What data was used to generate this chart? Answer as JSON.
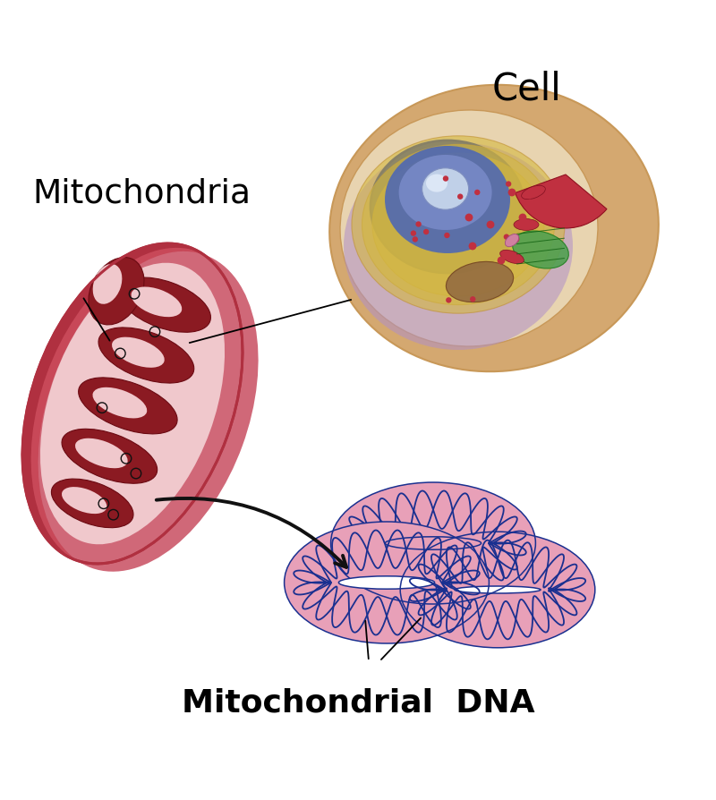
{
  "bg_color": "#ffffff",
  "title_cell": "Cell",
  "title_mito": "Mitochondria",
  "title_dna": "Mitochondrial  DNA",
  "colors": {
    "mito_outer_dark": "#b03040",
    "mito_outer_mid": "#c84858",
    "mito_outer_light": "#d06878",
    "mito_inner_bg": "#f0c8cc",
    "mito_crista": "#8b1a22",
    "mito_crista_edge": "#6b0a12",
    "cell_outer": "#d4a870",
    "cell_outer2": "#c89858",
    "cell_inner": "#e8d4b0",
    "cell_purple": "#b090c8",
    "nucleus_dark": "#2840a0",
    "nucleus_mid": "#4060c0",
    "nucleus_light": "#8090d0",
    "nucleolus": "#c0d0e8",
    "er_yellow": "#d4b840",
    "er_orange": "#c09030",
    "green_org": "#50a050",
    "red_small": "#c03040",
    "brown_org": "#906840",
    "pink_org": "#d080a0",
    "dna_fill": "#e8a0b8",
    "dna_blue": "#1a3090",
    "dna_red": "#c03050",
    "dna_green": "#308040",
    "arrow_black": "#111111"
  }
}
